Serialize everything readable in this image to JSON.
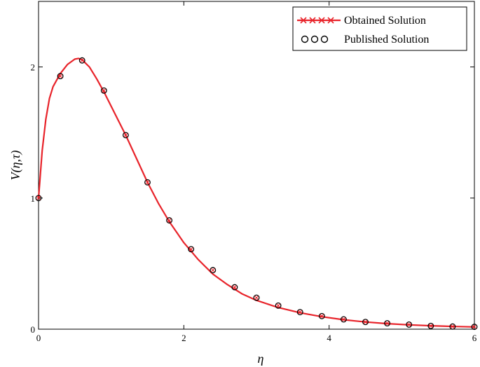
{
  "chart_data": {
    "type": "line",
    "title": "",
    "xlabel": "η",
    "ylabel": "V(η,τ)",
    "xlim": [
      0,
      6
    ],
    "ylim": [
      0,
      2.5
    ],
    "xticks": [
      0,
      2,
      4,
      6
    ],
    "yticks": [
      0,
      1,
      2
    ],
    "grid": false,
    "legend_position": "top-right",
    "series": [
      {
        "name": "Obtained Solution",
        "style": "line",
        "color": "#e8232a",
        "x": [
          0,
          0.05,
          0.1,
          0.15,
          0.2,
          0.3,
          0.4,
          0.5,
          0.55,
          0.6,
          0.7,
          0.8,
          0.9,
          1.0,
          1.1,
          1.2,
          1.35,
          1.5,
          1.65,
          1.8,
          2.0,
          2.2,
          2.4,
          2.6,
          2.8,
          3.0,
          3.3,
          3.6,
          3.9,
          4.2,
          4.5,
          4.8,
          5.1,
          5.4,
          5.7,
          6.0
        ],
        "y": [
          1.0,
          1.36,
          1.6,
          1.76,
          1.85,
          1.95,
          2.02,
          2.06,
          2.065,
          2.055,
          2.0,
          1.91,
          1.81,
          1.7,
          1.59,
          1.48,
          1.3,
          1.12,
          0.96,
          0.82,
          0.66,
          0.53,
          0.42,
          0.34,
          0.27,
          0.22,
          0.165,
          0.125,
          0.095,
          0.072,
          0.055,
          0.042,
          0.033,
          0.026,
          0.021,
          0.017
        ]
      },
      {
        "name": "Published Solution",
        "style": "markers",
        "color": "#000000",
        "x": [
          0,
          0.3,
          0.6,
          0.9,
          1.2,
          1.5,
          1.8,
          2.1,
          2.4,
          2.7,
          3.0,
          3.3,
          3.6,
          3.9,
          4.2,
          4.5,
          4.8,
          5.1,
          5.4,
          5.7,
          6.0
        ],
        "y": [
          1.0,
          1.93,
          2.05,
          1.82,
          1.48,
          1.12,
          0.83,
          0.61,
          0.45,
          0.32,
          0.24,
          0.18,
          0.13,
          0.1,
          0.075,
          0.055,
          0.045,
          0.035,
          0.025,
          0.02,
          0.018
        ]
      }
    ]
  }
}
